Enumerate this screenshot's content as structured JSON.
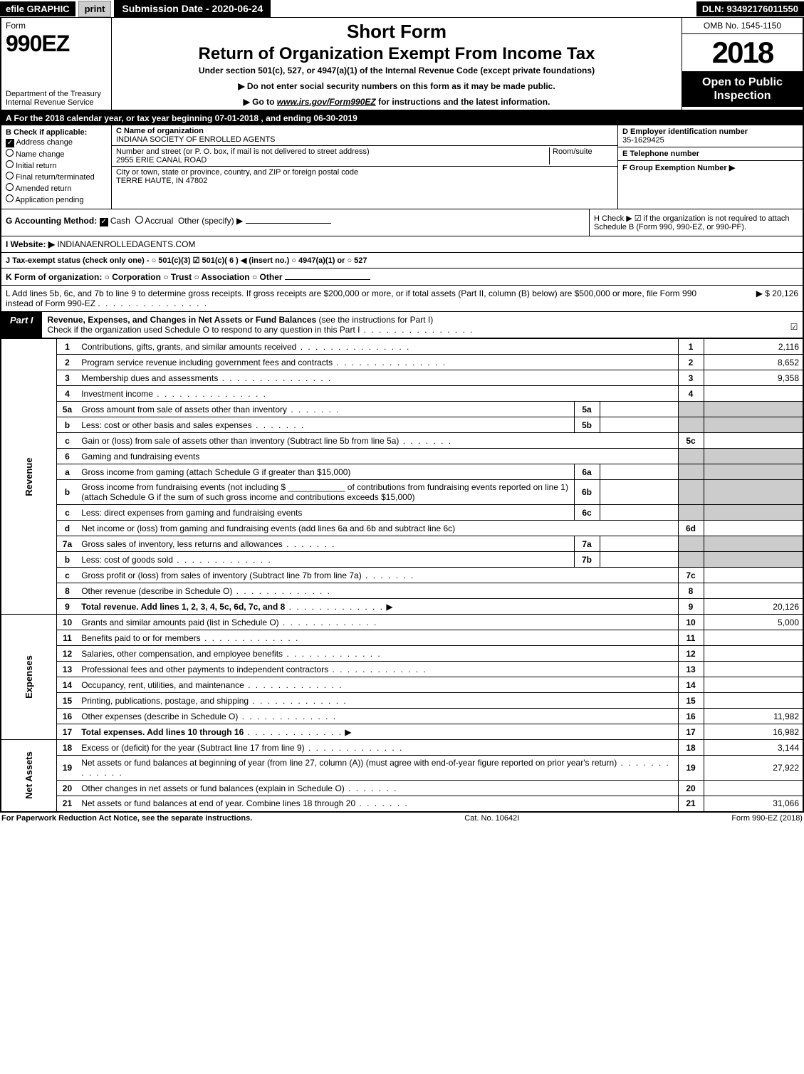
{
  "topBar": {
    "efile": "efile GRAPHIC",
    "print": "print",
    "submissionDateLabel": "Submission Date - 2020-06-24",
    "dln": "DLN: 93492176011550"
  },
  "header": {
    "formWord": "Form",
    "formNumber": "990EZ",
    "dept1": "Department of the Treasury",
    "dept2": "Internal Revenue Service",
    "shortForm": "Short Form",
    "returnTitle": "Return of Organization Exempt From Income Tax",
    "subtitle": "Under section 501(c), 527, or 4947(a)(1) of the Internal Revenue Code (except private foundations)",
    "instr1": "▶ Do not enter social security numbers on this form as it may be made public.",
    "instr2Prefix": "▶ Go to ",
    "instr2Link": "www.irs.gov/Form990EZ",
    "instr2Suffix": " for instructions and the latest information.",
    "omb": "OMB No. 1545-1150",
    "year": "2018",
    "openPublic": "Open to Public Inspection"
  },
  "periodBar": {
    "prefix": "A  For the 2018 calendar year, or tax year beginning ",
    "begin": "07-01-2018",
    "mid": " , and ending ",
    "end": "06-30-2019"
  },
  "sectionB": {
    "header": "B  Check if applicable:",
    "items": [
      {
        "label": "Address change",
        "checked": true
      },
      {
        "label": "Name change",
        "checked": false
      },
      {
        "label": "Initial return",
        "checked": false
      },
      {
        "label": "Final return/terminated",
        "checked": false
      },
      {
        "label": "Amended return",
        "checked": false
      },
      {
        "label": "Application pending",
        "checked": false
      }
    ]
  },
  "entity": {
    "cLabel": "C Name of organization",
    "name": "INDIANA SOCIETY OF ENROLLED AGENTS",
    "streetLabel": "Number and street (or P. O. box, if mail is not delivered to street address)",
    "street": "2955 ERIE CANAL ROAD",
    "roomLabel": "Room/suite",
    "room": "",
    "cityLabel": "City or town, state or province, country, and ZIP or foreign postal code",
    "city": "TERRE HAUTE, IN  47802"
  },
  "rightCol": {
    "dLabel": "D Employer identification number",
    "ein": "35-1629425",
    "eLabel": "E Telephone number",
    "phone": "",
    "fLabel": "F Group Exemption Number  ▶",
    "fVal": ""
  },
  "gLine": {
    "prefix": "G Accounting Method: ",
    "cash": "Cash",
    "accrual": "Accrual",
    "other": "Other (specify) ▶"
  },
  "hLine": {
    "text": "H  Check ▶ ☑ if the organization is not required to attach Schedule B (Form 990, 990-EZ, or 990-PF)."
  },
  "iLine": {
    "label": "I Website: ▶",
    "value": "INDIANAENROLLEDAGENTS.COM"
  },
  "jLine": {
    "text": "J Tax-exempt status (check only one) - ○ 501(c)(3) ☑ 501(c)( 6 ) ◀ (insert no.) ○ 4947(a)(1) or ○ 527"
  },
  "kLine": {
    "text": "K Form of organization:  ○ Corporation  ○ Trust  ○ Association  ○ Other"
  },
  "lLine": {
    "text": "L Add lines 5b, 6c, and 7b to line 9 to determine gross receipts. If gross receipts are $200,000 or more, or if total assets (Part II, column (B) below) are $500,000 or more, file Form 990 instead of Form 990-EZ",
    "amount": "▶ $ 20,126"
  },
  "partI": {
    "label": "Part I",
    "title": "Revenue, Expenses, and Changes in Net Assets or Fund Balances",
    "titleSuffix": " (see the instructions for Part I)",
    "checkText": "Check if the organization used Schedule O to respond to any question in this Part I",
    "checked": "☑"
  },
  "sections": [
    {
      "side": "Revenue",
      "rows": [
        {
          "n": "1",
          "desc": "Contributions, gifts, grants, and similar amounts received",
          "ref": "1",
          "amt": "2,116",
          "dots": "dots"
        },
        {
          "n": "2",
          "desc": "Program service revenue including government fees and contracts",
          "ref": "2",
          "amt": "8,652",
          "dots": "dots"
        },
        {
          "n": "3",
          "desc": "Membership dues and assessments",
          "ref": "3",
          "amt": "9,358",
          "dots": "dots"
        },
        {
          "n": "4",
          "desc": "Investment income",
          "ref": "4",
          "amt": "",
          "dots": "dots"
        },
        {
          "n": "5a",
          "desc": "Gross amount from sale of assets other than inventory",
          "sub": "5a",
          "subval": "",
          "shadeRight": true,
          "dots": "dots-short"
        },
        {
          "n": "b",
          "desc": "Less: cost or other basis and sales expenses",
          "sub": "5b",
          "subval": "",
          "shadeRight": true,
          "dots": "dots-short"
        },
        {
          "n": "c",
          "desc": "Gain or (loss) from sale of assets other than inventory (Subtract line 5b from line 5a)",
          "ref": "5c",
          "amt": "",
          "dots": "dots-short"
        },
        {
          "n": "6",
          "desc": "Gaming and fundraising events",
          "shadeRight": true,
          "noref": true
        },
        {
          "n": "a",
          "desc": "Gross income from gaming (attach Schedule G if greater than $15,000)",
          "sub": "6a",
          "subval": "",
          "shadeRight": true
        },
        {
          "n": "b",
          "desc": "Gross income from fundraising events (not including $ ____________ of contributions from fundraising events reported on line 1) (attach Schedule G if the sum of such gross income and contributions exceeds $15,000)",
          "sub": "6b",
          "subval": "",
          "shadeRight": true
        },
        {
          "n": "c",
          "desc": "Less: direct expenses from gaming and fundraising events",
          "sub": "6c",
          "subval": "",
          "shadeRight": true
        },
        {
          "n": "d",
          "desc": "Net income or (loss) from gaming and fundraising events (add lines 6a and 6b and subtract line 6c)",
          "ref": "6d",
          "amt": ""
        },
        {
          "n": "7a",
          "desc": "Gross sales of inventory, less returns and allowances",
          "sub": "7a",
          "subval": "",
          "shadeRight": true,
          "dots": "dots-short"
        },
        {
          "n": "b",
          "desc": "Less: cost of goods sold",
          "sub": "7b",
          "subval": "",
          "shadeRight": true,
          "dots": "dots-mid"
        },
        {
          "n": "c",
          "desc": "Gross profit or (loss) from sales of inventory (Subtract line 7b from line 7a)",
          "ref": "7c",
          "amt": "",
          "dots": "dots-short"
        },
        {
          "n": "8",
          "desc": "Other revenue (describe in Schedule O)",
          "ref": "8",
          "amt": "",
          "dots": "dots-mid"
        },
        {
          "n": "9",
          "desc": "Total revenue. Add lines 1, 2, 3, 4, 5c, 6d, 7c, and 8",
          "ref": "9",
          "amt": "20,126",
          "bold": true,
          "arrow": true,
          "dots": "dots-mid"
        }
      ]
    },
    {
      "side": "Expenses",
      "rows": [
        {
          "n": "10",
          "desc": "Grants and similar amounts paid (list in Schedule O)",
          "ref": "10",
          "amt": "5,000",
          "dots": "dots-mid"
        },
        {
          "n": "11",
          "desc": "Benefits paid to or for members",
          "ref": "11",
          "amt": "",
          "dots": "dots-mid"
        },
        {
          "n": "12",
          "desc": "Salaries, other compensation, and employee benefits",
          "ref": "12",
          "amt": "",
          "dots": "dots-mid"
        },
        {
          "n": "13",
          "desc": "Professional fees and other payments to independent contractors",
          "ref": "13",
          "amt": "",
          "dots": "dots-mid"
        },
        {
          "n": "14",
          "desc": "Occupancy, rent, utilities, and maintenance",
          "ref": "14",
          "amt": "",
          "dots": "dots-mid"
        },
        {
          "n": "15",
          "desc": "Printing, publications, postage, and shipping",
          "ref": "15",
          "amt": "",
          "dots": "dots-mid"
        },
        {
          "n": "16",
          "desc": "Other expenses (describe in Schedule O)",
          "ref": "16",
          "amt": "11,982",
          "dots": "dots-mid"
        },
        {
          "n": "17",
          "desc": "Total expenses. Add lines 10 through 16",
          "ref": "17",
          "amt": "16,982",
          "bold": true,
          "arrow": true,
          "dots": "dots-mid"
        }
      ]
    },
    {
      "side": "Net Assets",
      "rows": [
        {
          "n": "18",
          "desc": "Excess or (deficit) for the year (Subtract line 17 from line 9)",
          "ref": "18",
          "amt": "3,144",
          "dots": "dots-mid"
        },
        {
          "n": "19",
          "desc": "Net assets or fund balances at beginning of year (from line 27, column (A)) (must agree with end-of-year figure reported on prior year's return)",
          "ref": "19",
          "amt": "27,922",
          "dots": "dots-mid"
        },
        {
          "n": "20",
          "desc": "Other changes in net assets or fund balances (explain in Schedule O)",
          "ref": "20",
          "amt": "",
          "dots": "dots-short"
        },
        {
          "n": "21",
          "desc": "Net assets or fund balances at end of year. Combine lines 18 through 20",
          "ref": "21",
          "amt": "31,066",
          "dots": "dots-short"
        }
      ]
    }
  ],
  "footer": {
    "left": "For Paperwork Reduction Act Notice, see the separate instructions.",
    "center": "Cat. No. 10642I",
    "right": "Form 990-EZ (2018)"
  },
  "colors": {
    "black": "#000000",
    "white": "#ffffff",
    "gray": "#cccccc"
  }
}
